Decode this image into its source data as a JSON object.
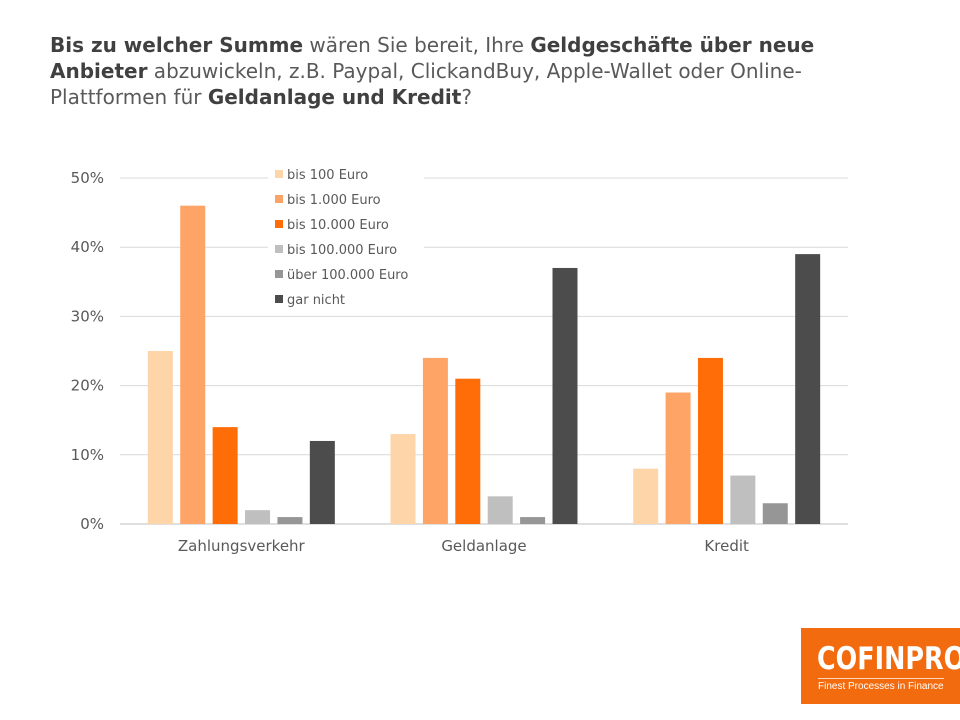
{
  "title_parts": [
    {
      "text": "Bis zu welcher Summe",
      "bold": true
    },
    {
      "text": " wären Sie bereit, Ihre ",
      "bold": false
    },
    {
      "text": "Geldgeschäfte über neue Anbieter",
      "bold": true
    },
    {
      "text": " abzuwickeln, z.B. Paypal, ClickandBuy, Apple-Wallet oder Online-Plattformen für ",
      "bold": false
    },
    {
      "text": "Geldanlage und Kredit",
      "bold": true
    },
    {
      "text": "?",
      "bold": false
    }
  ],
  "chart_data": {
    "type": "bar",
    "categories": [
      "Zahlungsverkehr",
      "Geldanlage",
      "Kredit"
    ],
    "series": [
      {
        "name": "bis 100 Euro",
        "color": "#fdd5a9",
        "values": [
          25,
          13,
          8
        ]
      },
      {
        "name": "bis 1.000 Euro",
        "color": "#fda466",
        "values": [
          46,
          24,
          19
        ]
      },
      {
        "name": "bis 10.000 Euro",
        "color": "#fe6d08",
        "values": [
          14,
          21,
          24
        ]
      },
      {
        "name": "bis 100.000 Euro",
        "color": "#bfbfbf",
        "values": [
          2,
          4,
          7
        ]
      },
      {
        "name": "über 100.000 Euro",
        "color": "#969696",
        "values": [
          1,
          1,
          3
        ]
      },
      {
        "name": "gar nicht",
        "color": "#4c4c4c",
        "values": [
          12,
          37,
          39
        ]
      }
    ],
    "ylim": [
      0,
      50
    ],
    "yticks": [
      0,
      10,
      20,
      30,
      40,
      50
    ],
    "ytick_labels": [
      "0%",
      "10%",
      "20%",
      "30%",
      "40%",
      "50%"
    ],
    "grid": true,
    "legend_position": "top-left inside"
  },
  "logo": {
    "name": "COFINPRO",
    "tagline": "Finest Processes in Finance",
    "color": "#f36b0f"
  }
}
